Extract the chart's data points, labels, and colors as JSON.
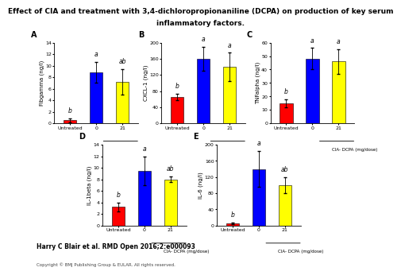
{
  "title_line1": "Effect of CIA and treatment with 3,4-dichloropropionaniline (DCPA) on production of key serum",
  "title_line2": "inflammatory factors.",
  "panels": [
    {
      "label": "A",
      "ylabel": "Fibgamma (ng/l)",
      "ylim": [
        0,
        14
      ],
      "yticks": [
        0,
        2,
        4,
        6,
        8,
        10,
        12,
        14
      ],
      "bars": [
        0.5,
        8.8,
        7.2
      ],
      "errors": [
        0.3,
        1.8,
        2.2
      ],
      "sig_labels": [
        "b",
        "a",
        "ab"
      ],
      "bar_colors": [
        "#ff0000",
        "#0000ff",
        "#ffff00"
      ]
    },
    {
      "label": "B",
      "ylabel": "CXCL-1 (ng/l)",
      "ylim": [
        0,
        200
      ],
      "yticks": [
        0,
        40,
        80,
        120,
        160,
        200
      ],
      "bars": [
        65,
        160,
        140
      ],
      "errors": [
        8,
        30,
        35
      ],
      "sig_labels": [
        "b",
        "a",
        "a"
      ],
      "bar_colors": [
        "#ff0000",
        "#0000ff",
        "#ffff00"
      ]
    },
    {
      "label": "C",
      "ylabel": "TNFalpha (ng/l)",
      "ylim": [
        0,
        60
      ],
      "yticks": [
        0,
        10,
        20,
        30,
        40,
        50,
        60
      ],
      "bars": [
        15,
        48,
        46
      ],
      "errors": [
        3,
        8,
        9
      ],
      "sig_labels": [
        "b",
        "a",
        "a"
      ],
      "bar_colors": [
        "#ff0000",
        "#0000ff",
        "#ffff00"
      ]
    },
    {
      "label": "D",
      "ylabel": "IL-1beta (ng/l)",
      "ylim": [
        0,
        14
      ],
      "yticks": [
        0,
        2,
        4,
        6,
        8,
        10,
        12,
        14
      ],
      "bars": [
        3.2,
        9.5,
        8.0
      ],
      "errors": [
        0.8,
        2.5,
        0.5
      ],
      "sig_labels": [
        "b",
        "a",
        "ab"
      ],
      "bar_colors": [
        "#ff0000",
        "#0000ff",
        "#ffff00"
      ]
    },
    {
      "label": "E",
      "ylabel": "IL-6 (ng/l)",
      "ylim": [
        0,
        200
      ],
      "yticks": [
        0,
        40,
        80,
        120,
        160,
        200
      ],
      "bars": [
        5,
        140,
        100
      ],
      "errors": [
        2,
        45,
        20
      ],
      "sig_labels": [
        "b",
        "a",
        "ab"
      ],
      "bar_colors": [
        "#ff0000",
        "#0000ff",
        "#ffff00"
      ]
    }
  ],
  "x_ticklabels": [
    "Untreated",
    "0",
    "21"
  ],
  "x_sublabel": "CIA- DCPA (mg/dose)",
  "citation": "Harry C Blair et al. RMD Open 2016;2:e000093",
  "copyright": "Copyright © BMJ Publishing Group & EULAR. All rights reserved.",
  "background_color": "#ffffff",
  "bar_width": 0.5,
  "fontsize_title": 6.5,
  "fontsize_axis": 5.0,
  "fontsize_tick": 4.5,
  "fontsize_sig": 5.5
}
